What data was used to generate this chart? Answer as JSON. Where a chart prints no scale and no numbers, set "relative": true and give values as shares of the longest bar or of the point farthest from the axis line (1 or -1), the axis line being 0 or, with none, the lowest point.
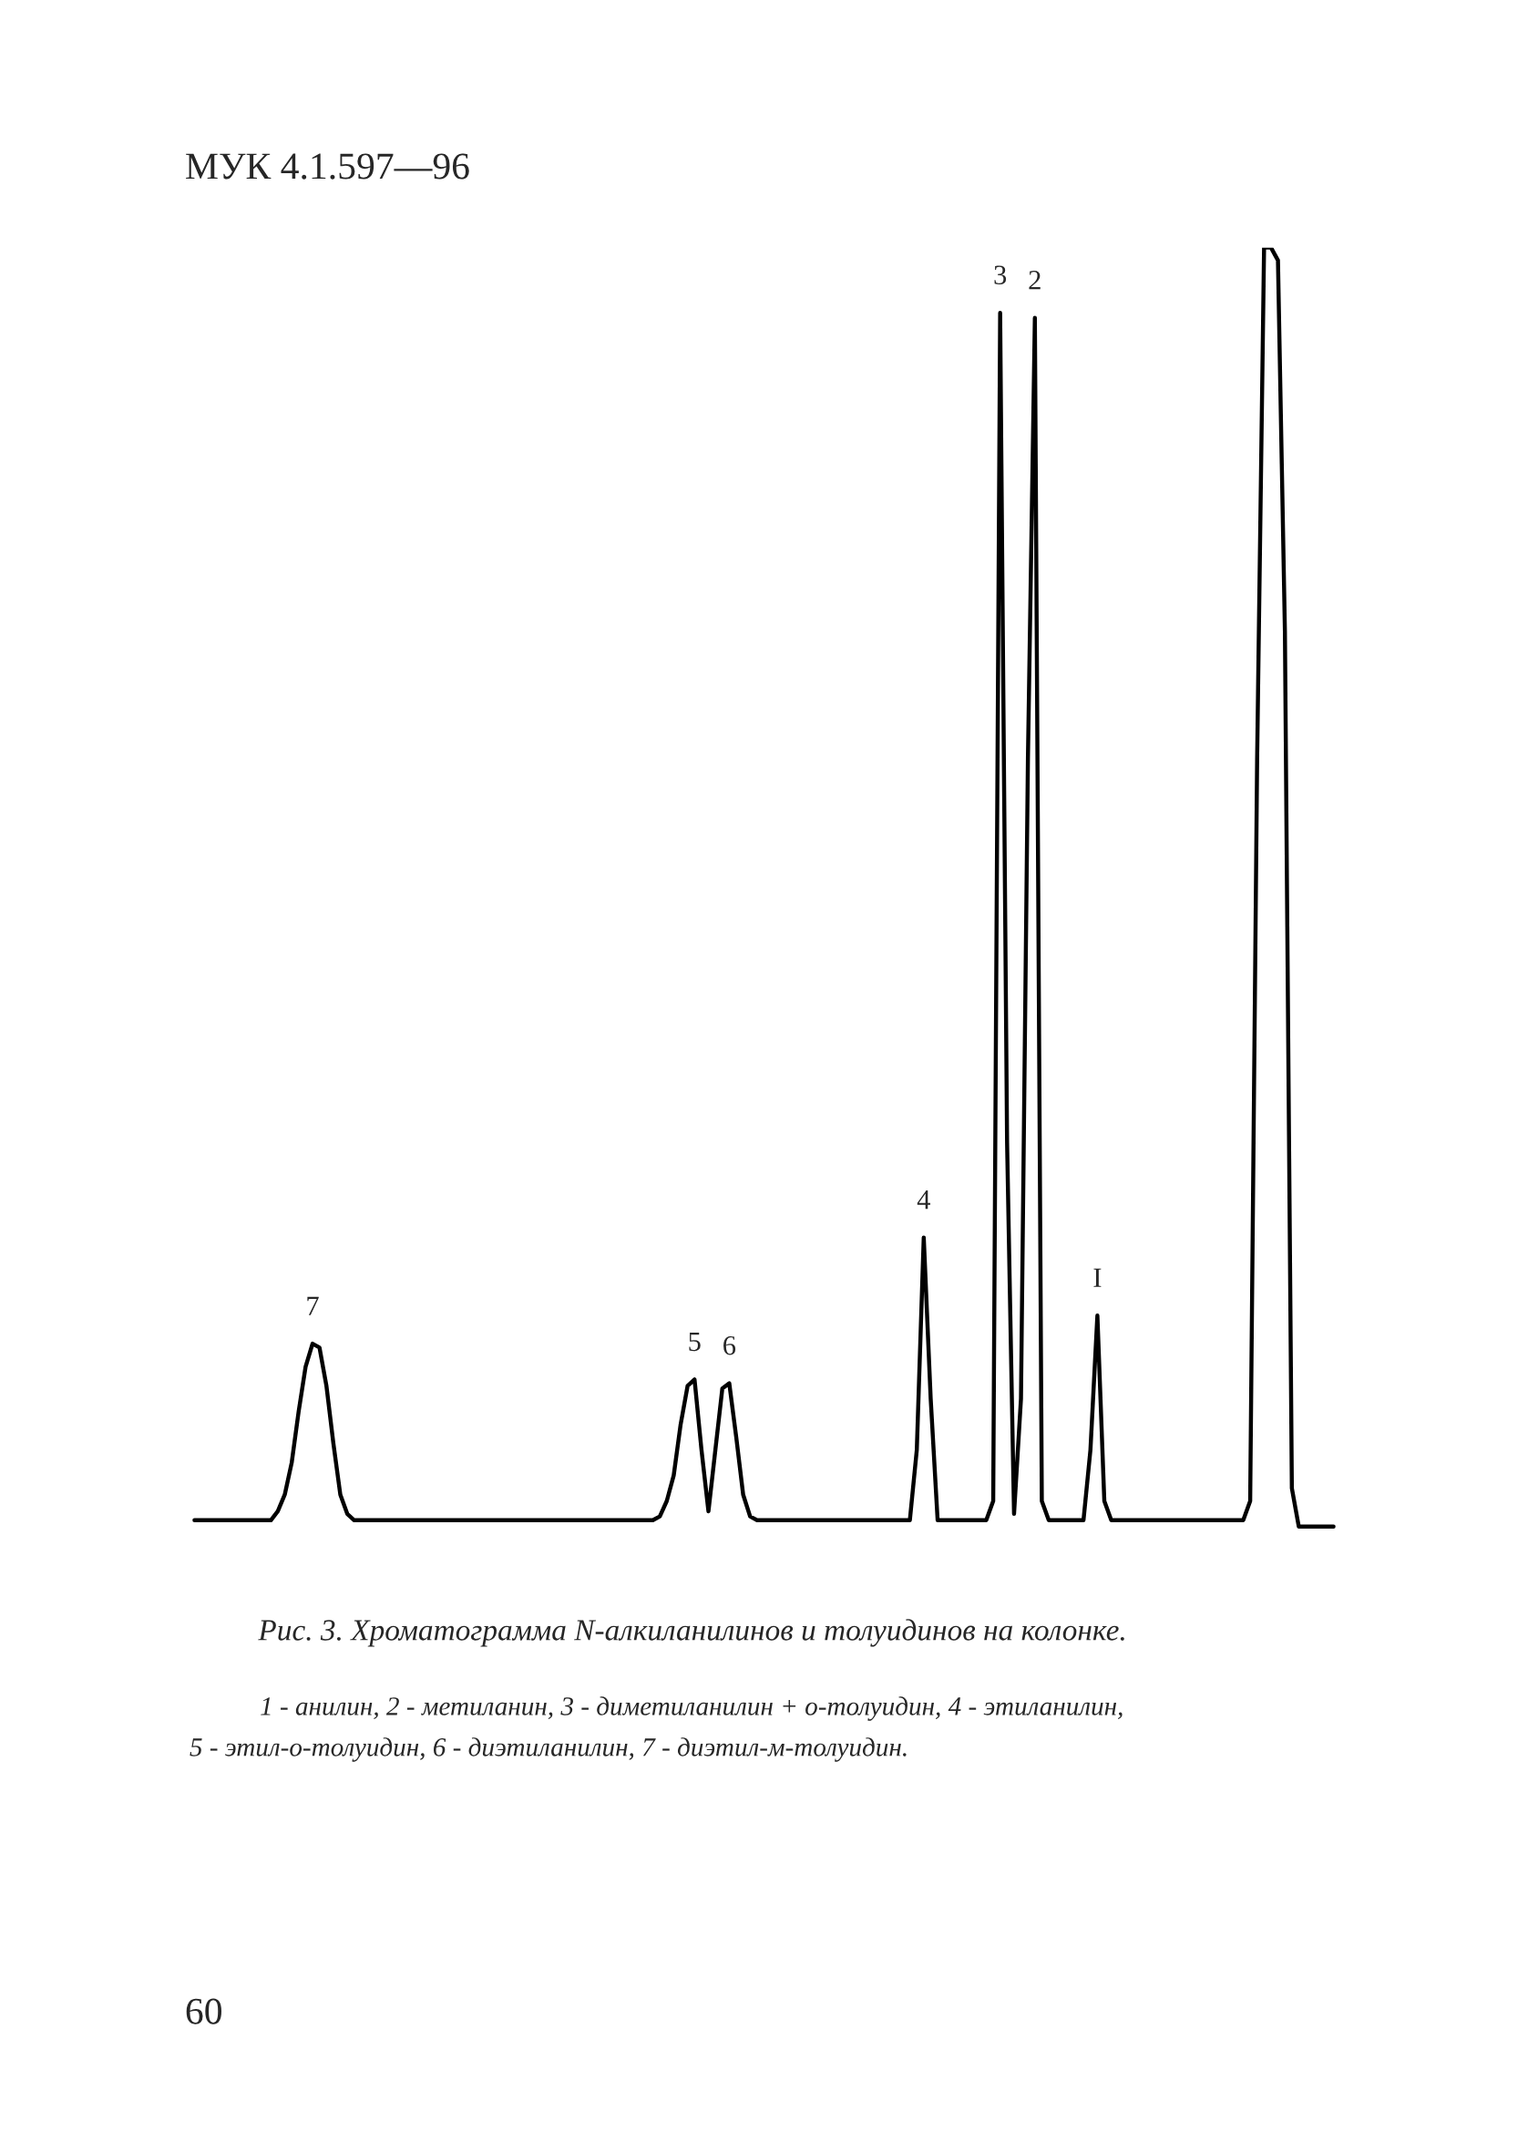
{
  "chart_data": {
    "type": "line",
    "relative": true,
    "categories": [
      null,
      null,
      null,
      null,
      null,
      null,
      null,
      null,
      null,
      null,
      null,
      null,
      null,
      null,
      null,
      null,
      null,
      null,
      null,
      null,
      null,
      null,
      null,
      null,
      null,
      null,
      null,
      null,
      null,
      null,
      null,
      null,
      null,
      null,
      null,
      null,
      null,
      null,
      null,
      null,
      null,
      null,
      null,
      null,
      null,
      null,
      null,
      null,
      null,
      null,
      null,
      null,
      null,
      null,
      null,
      null,
      null,
      null,
      null,
      null,
      null,
      null,
      null,
      null,
      null,
      null,
      null,
      null,
      null,
      null,
      null,
      null,
      null,
      null,
      null,
      null,
      null,
      null,
      null,
      null,
      null,
      null,
      null,
      null,
      null,
      null,
      null,
      null,
      null,
      null,
      null,
      null,
      null,
      null,
      null,
      null,
      null,
      null,
      null,
      null,
      null,
      null,
      null,
      null,
      null,
      null,
      null,
      null,
      null,
      null,
      null,
      null,
      null,
      null,
      null,
      null,
      null,
      null,
      null,
      null,
      null,
      null,
      null,
      null,
      null,
      null,
      null,
      null,
      null,
      null,
      null,
      null,
      null,
      null,
      null,
      null,
      null,
      null,
      null,
      null,
      null,
      null,
      null,
      null,
      null,
      null,
      null,
      null,
      null,
      null,
      null,
      null,
      null,
      null,
      null,
      null,
      null,
      null,
      null,
      null,
      null,
      null,
      null,
      null,
      null
    ],
    "series": [
      {
        "color": "#000000",
        "values": [
          0.005,
          0.005,
          0.005,
          0.005,
          0.005,
          0.005,
          0.005,
          0.005,
          0.005,
          0.005,
          0.005,
          0.005,
          0.012,
          0.025,
          0.05,
          0.09,
          0.125,
          0.143,
          0.14,
          0.11,
          0.065,
          0.025,
          0.01,
          0.005,
          0.005,
          0.005,
          0.005,
          0.005,
          0.005,
          0.005,
          0.005,
          0.005,
          0.005,
          0.005,
          0.005,
          0.005,
          0.005,
          0.005,
          0.005,
          0.005,
          0.005,
          0.005,
          0.005,
          0.005,
          0.005,
          0.005,
          0.005,
          0.005,
          0.005,
          0.005,
          0.005,
          0.005,
          0.005,
          0.005,
          0.005,
          0.005,
          0.005,
          0.005,
          0.005,
          0.005,
          0.005,
          0.005,
          0.005,
          0.005,
          0.005,
          0.005,
          0.005,
          0.008,
          0.02,
          0.04,
          0.08,
          0.11,
          0.115,
          0.06,
          0.012,
          0.06,
          0.108,
          0.112,
          0.07,
          0.025,
          0.008,
          0.005,
          0.005,
          0.005,
          0.005,
          0.005,
          0.005,
          0.005,
          0.005,
          0.005,
          0.005,
          0.005,
          0.005,
          0.005,
          0.005,
          0.005,
          0.005,
          0.005,
          0.005,
          0.005,
          0.005,
          0.005,
          0.005,
          0.005,
          0.06,
          0.226,
          0.1,
          0.005,
          0.005,
          0.005,
          0.005,
          0.005,
          0.005,
          0.005,
          0.005,
          0.02,
          0.949,
          0.3,
          0.01,
          0.1,
          0.6,
          0.945,
          0.02,
          0.005,
          0.005,
          0.005,
          0.005,
          0.005,
          0.005,
          0.06,
          0.165,
          0.02,
          0.005,
          0.005,
          0.005,
          0.005,
          0.005,
          0.005,
          0.005,
          0.005,
          0.005,
          0.005,
          0.005,
          0.005,
          0.005,
          0.005,
          0.005,
          0.005,
          0.005,
          0.005,
          0.005,
          0.005,
          0.02,
          0.6,
          1,
          1,
          0.99,
          0.7,
          0.03,
          0,
          0,
          0,
          0,
          0,
          0
        ]
      }
    ],
    "annotations": [
      "МУК 4.1.597—96",
      {
        "text": "7",
        "y": 0.143
      },
      {
        "text": "5",
        "y": 0.115
      },
      {
        "text": "6",
        "y": 0.112
      },
      {
        "text": "4",
        "y": 0.226
      },
      {
        "text": "3",
        "y": 0.949
      },
      {
        "text": "2",
        "y": 0.945
      },
      {
        "text": "I",
        "y": 0.165
      },
      "Рис. 3. Хроматограмма N-алкиланилинов и толуидинов на колонке.",
      "1 - анилин, 2 - метиланин, 3 - диметиланилин + о-толуидин, 4 - этиланилин,",
      "5 - этил-о-толуидин, 6 - диэтиланилин, 7 - диэтил-м-толуидин.",
      "60"
    ]
  }
}
